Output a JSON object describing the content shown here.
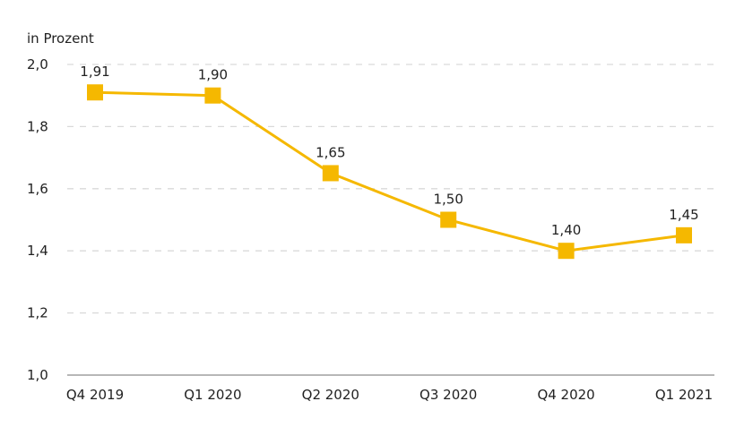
{
  "chart_data": {
    "type": "line",
    "unit_label": "in Prozent",
    "categories": [
      "Q4 2019",
      "Q1 2020",
      "Q2 2020",
      "Q3 2020",
      "Q4 2020",
      "Q1 2021"
    ],
    "series": [
      {
        "values": [
          1.91,
          1.9,
          1.65,
          1.5,
          1.4,
          1.45
        ],
        "data_labels": [
          "1,91",
          "1,90",
          "1,65",
          "1,50",
          "1,40",
          "1,45"
        ],
        "color": "#F5B800",
        "marker": "square"
      }
    ],
    "y_ticks": [
      {
        "value": 1.0,
        "label": "1,0"
      },
      {
        "value": 1.2,
        "label": "1,2"
      },
      {
        "value": 1.4,
        "label": "1,4"
      },
      {
        "value": 1.6,
        "label": "1,6"
      },
      {
        "value": 1.8,
        "label": "1,8"
      },
      {
        "value": 2.0,
        "label": "2,0"
      }
    ],
    "ylim": [
      1.0,
      2.0
    ],
    "grid": "horizontal-dashed",
    "legend": "none",
    "colors": {
      "line": "#F5B800",
      "grid": "#d9d9d9",
      "axis": "#8c8c8c",
      "text": "#222222"
    }
  }
}
